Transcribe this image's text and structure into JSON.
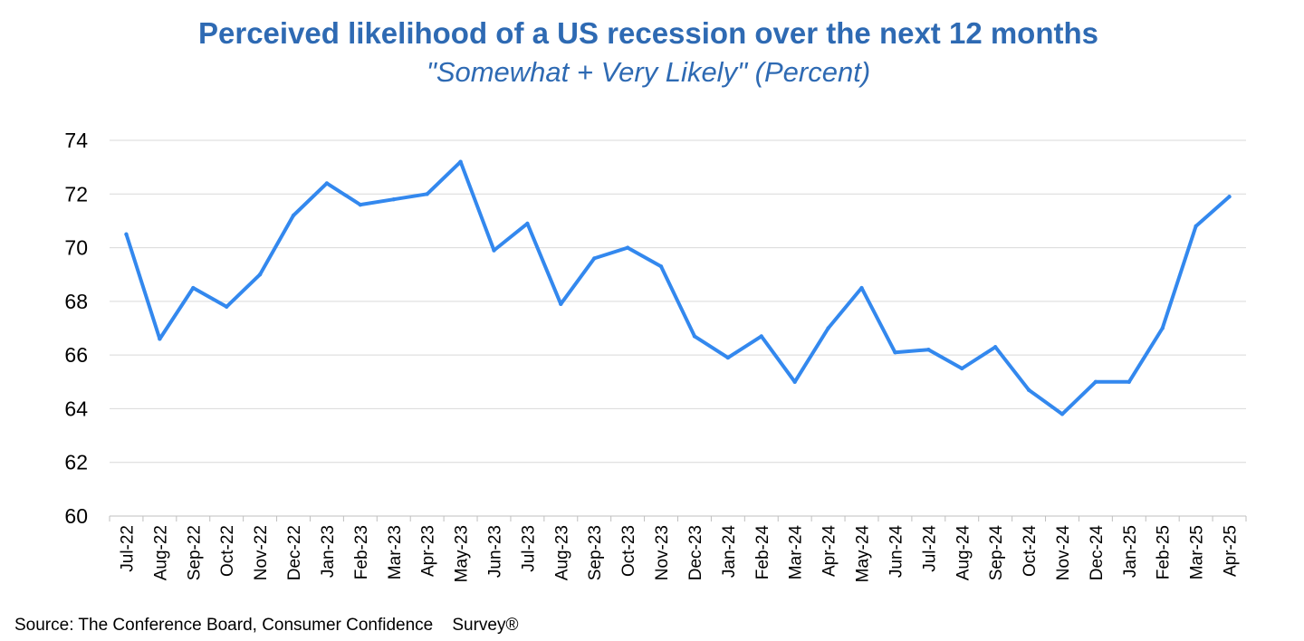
{
  "chart_data": {
    "type": "line",
    "title": "Perceived likelihood of a US recession over the next 12 months",
    "subtitle": "\"Somewhat + Very Likely\" (Percent)",
    "xlabel": "",
    "ylabel": "",
    "ylim": [
      60,
      74
    ],
    "yticks": [
      60,
      62,
      64,
      66,
      68,
      70,
      72,
      74
    ],
    "grid": true,
    "legend": "none",
    "categories": [
      "Jul-22",
      "Aug-22",
      "Sep-22",
      "Oct-22",
      "Nov-22",
      "Dec-22",
      "Jan-23",
      "Feb-23",
      "Mar-23",
      "Apr-23",
      "May-23",
      "Jun-23",
      "Jul-23",
      "Aug-23",
      "Sep-23",
      "Oct-23",
      "Nov-23",
      "Dec-23",
      "Jan-24",
      "Feb-24",
      "Mar-24",
      "Apr-24",
      "May-24",
      "Jun-24",
      "Jul-24",
      "Aug-24",
      "Sep-24",
      "Oct-24",
      "Nov-24",
      "Dec-24",
      "Jan-25",
      "Feb-25",
      "Mar-25",
      "Apr-25"
    ],
    "series": [
      {
        "color": "#3388ee",
        "values": [
          70.5,
          66.6,
          68.5,
          67.8,
          69.0,
          71.2,
          72.4,
          71.6,
          71.8,
          72.0,
          73.2,
          69.9,
          70.9,
          67.9,
          69.6,
          70.0,
          69.3,
          66.7,
          65.9,
          66.7,
          65.0,
          67.0,
          68.5,
          66.1,
          66.2,
          65.5,
          66.3,
          64.7,
          63.8,
          65.0,
          65.0,
          67.0,
          70.8,
          71.9
        ]
      }
    ]
  },
  "source": "Source: The Conference Board, Consumer Confidence    Survey®",
  "colors": {
    "title": "#2e6ab3",
    "line": "#3388ee",
    "grid": "#d9d9d9",
    "axis": "#bfbfbf"
  }
}
